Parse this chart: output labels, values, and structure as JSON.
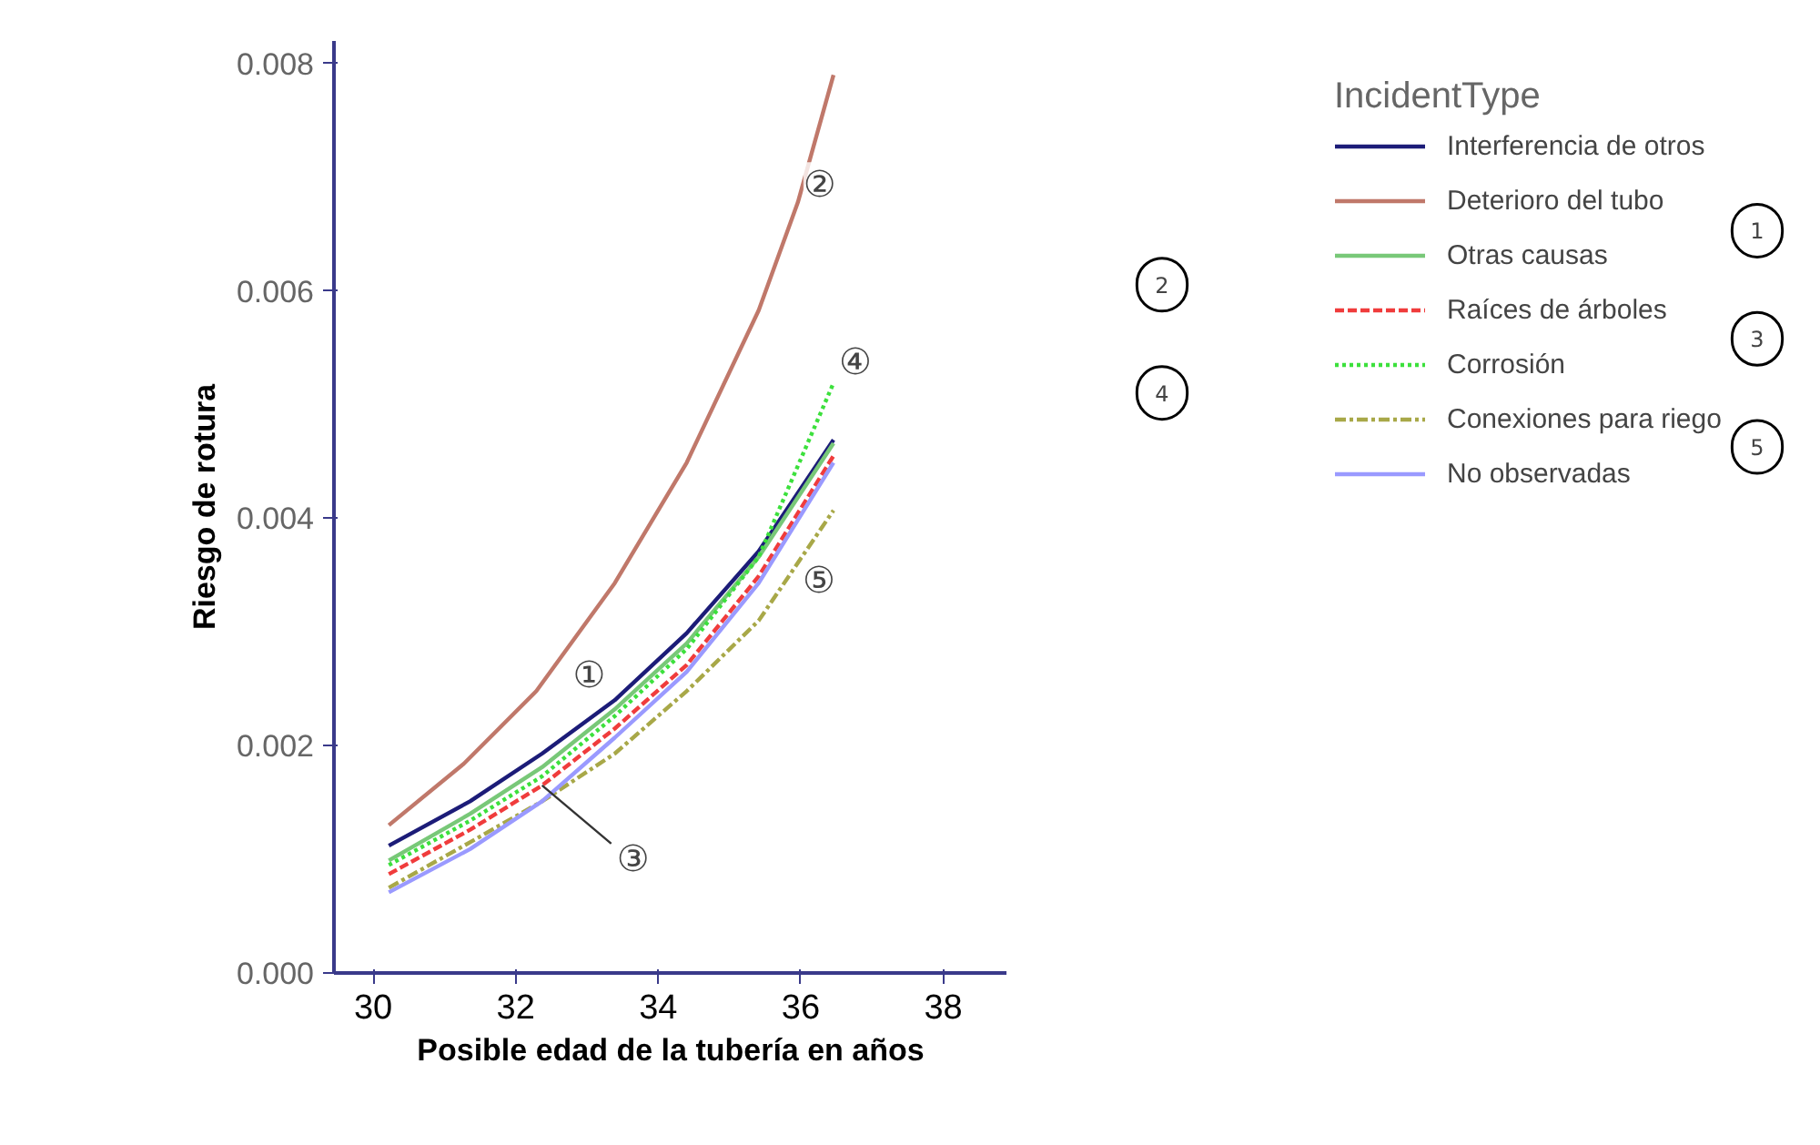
{
  "chart_data": {
    "type": "line",
    "xlabel": "Posible edad de la tubería en años",
    "ylabel": "Riesgo de rotura",
    "legend_title": "IncidentType",
    "x": [
      30.22,
      31.36,
      32.37,
      33.39,
      34.4,
      35.41,
      36.46
    ],
    "series": [
      {
        "name": "Interferencia de otros",
        "color": "#1c1c78",
        "line_style": "solid",
        "values": [
          0.00112,
          0.00151,
          0.00193,
          0.0024,
          0.00299,
          0.00371,
          0.00469
        ]
      },
      {
        "name": "Deterioro del tubo",
        "color": "#c0786a",
        "line_style": "solid",
        "x": [
          30.22,
          31.27,
          32.29,
          33.39,
          34.4,
          35.41,
          35.96,
          36.46
        ],
        "values": [
          0.0013,
          0.00184,
          0.00248,
          0.00343,
          0.00449,
          0.00583,
          0.00678,
          0.0079
        ]
      },
      {
        "name": "Otras causas",
        "color": "#78c878",
        "line_style": "solid",
        "values": [
          0.00099,
          0.0014,
          0.00181,
          0.00232,
          0.0029,
          0.00366,
          0.00466
        ]
      },
      {
        "name": "Raíces de árboles",
        "color": "#f03c3c",
        "line_style": "dashed",
        "values": [
          0.00087,
          0.00126,
          0.00165,
          0.00215,
          0.00271,
          0.00349,
          0.00455
        ]
      },
      {
        "name": "Corrosión",
        "color": "#3ce03c",
        "line_style": "dotted",
        "values": [
          0.00095,
          0.00134,
          0.00173,
          0.00226,
          0.00285,
          0.00366,
          0.00519
        ]
      },
      {
        "name": "Conexiones para riego",
        "color": "#a8a848",
        "line_style": "dashdot",
        "values": [
          0.00075,
          0.00115,
          0.00151,
          0.00193,
          0.00248,
          0.0031,
          0.00407
        ]
      },
      {
        "name": "No observadas",
        "color": "#9a9aff",
        "line_style": "solid",
        "values": [
          0.00071,
          0.00109,
          0.00151,
          0.00207,
          0.00265,
          0.00343,
          0.00449
        ]
      }
    ],
    "xlim": [
      29.45,
      38.9
    ],
    "xticks": [
      30,
      32,
      34,
      36,
      38
    ],
    "ylim": [
      0,
      0.0082
    ],
    "yticks": [
      {
        "value": 0,
        "label": "0.000"
      },
      {
        "value": 0.002,
        "label": "0.002"
      },
      {
        "value": 0.004,
        "label": "0.004"
      },
      {
        "value": 0.006,
        "label": "0.006"
      },
      {
        "value": 0.008,
        "label": "0.008"
      }
    ],
    "legend": "right",
    "grid": false,
    "annotations": [
      {
        "text": "①",
        "x": 33.39,
        "y": 0.0024
      },
      {
        "text": "②",
        "x": 35.96,
        "y": 0.00678
      },
      {
        "text": "③",
        "x": 32.37,
        "y": 0.00165
      },
      {
        "text": "④",
        "x": 36.46,
        "y": 0.00519
      },
      {
        "text": "⑤",
        "x": 36.46,
        "y": 0.00407
      },
      "1",
      "2",
      "3",
      "4",
      "5"
    ]
  }
}
